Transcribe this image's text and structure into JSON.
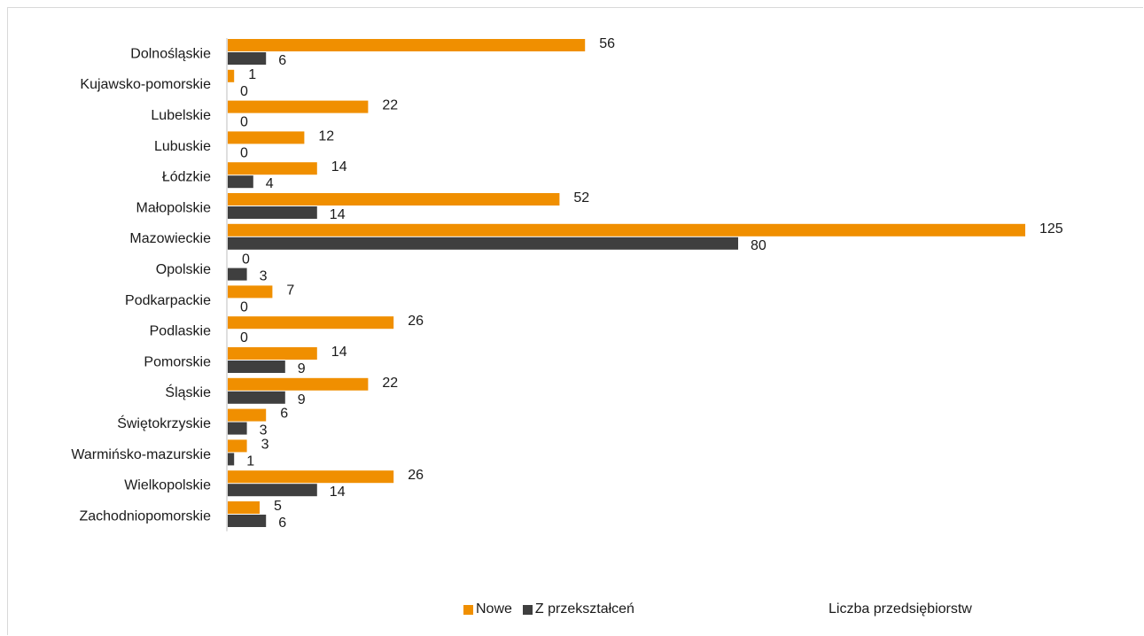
{
  "colors": {
    "nowe": "#f08f00",
    "z_przeksztalcen": "#3f3f3f",
    "axis": "#bfbfbf"
  },
  "legend": {
    "nowe": "Nowe",
    "z_przeksztalcen": "Z przekształceń"
  },
  "axis_title": "Liczba przedsiębiorstw",
  "chart_data": {
    "type": "bar",
    "orientation": "horizontal",
    "categories": [
      "Dolnośląskie",
      "Kujawsko-pomorskie",
      "Lubelskie",
      "Lubuskie",
      "Łódzkie",
      "Małopolskie",
      "Mazowieckie",
      "Opolskie",
      "Podkarpackie",
      "Podlaskie",
      "Pomorskie",
      "Śląskie",
      "Świętokrzyskie",
      "Warmińsko-mazurskie",
      "Wielkopolskie",
      "Zachodniopomorskie"
    ],
    "series": [
      {
        "name": "Nowe",
        "values": [
          56,
          1,
          22,
          12,
          14,
          52,
          125,
          0,
          7,
          26,
          14,
          22,
          6,
          3,
          26,
          5
        ]
      },
      {
        "name": "Z przekształceń",
        "values": [
          6,
          0,
          0,
          0,
          4,
          14,
          80,
          3,
          0,
          0,
          9,
          9,
          3,
          1,
          14,
          6
        ]
      }
    ],
    "xlabel": "Liczba przedsiębiorstw",
    "xlim": [
      0,
      125
    ],
    "grid": false,
    "legend_position": "bottom"
  }
}
